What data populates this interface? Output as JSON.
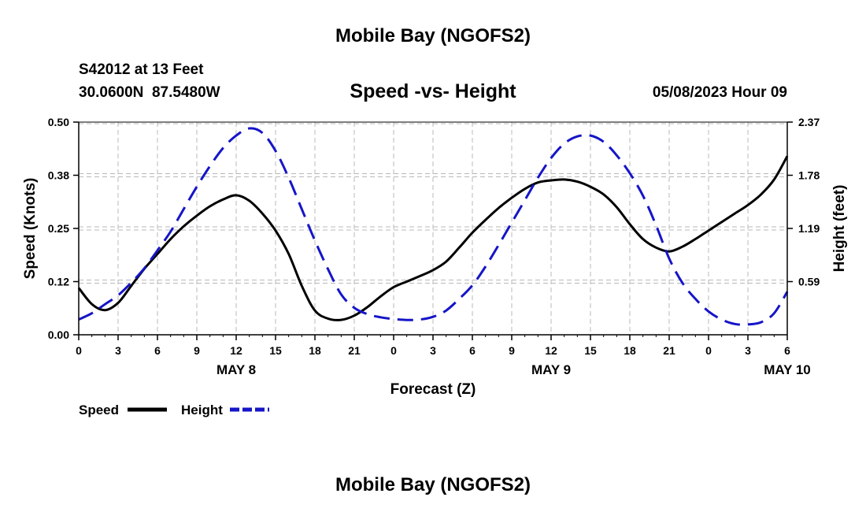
{
  "header": {
    "title": "Mobile Bay (NGOFS2)",
    "station": "S42012 at 13 Feet",
    "coords": "30.0600N  87.5480W",
    "chart_title": "Speed -vs- Height",
    "datetime": "05/08/2023 Hour 09"
  },
  "footer": {
    "title": "Mobile Bay (NGOFS2)"
  },
  "legend": {
    "speed_label": "Speed",
    "height_label": "Height"
  },
  "colors": {
    "speed": "#000000",
    "height": "#1515c8",
    "grid": "#b8b8b8"
  },
  "chart_data": {
    "type": "line",
    "title": "Speed -vs- Height",
    "xlabel": "Forecast (Z)",
    "ylabel": "Speed (Knots)",
    "y2label": "Height (feet)",
    "x_ticks": [
      "0",
      "3",
      "6",
      "9",
      "12",
      "15",
      "18",
      "21",
      "0",
      "3",
      "6",
      "9",
      "12",
      "15",
      "18",
      "21",
      "0",
      "3",
      "6"
    ],
    "x_days": [
      {
        "label": "MAY 8",
        "hour": 12
      },
      {
        "label": "MAY 9",
        "hour": 36
      },
      {
        "label": "MAY 10",
        "hour": 54
      }
    ],
    "xlim": [
      0,
      54
    ],
    "ylim": [
      0,
      0.5
    ],
    "y_ticks": [
      "0.00",
      "0.12",
      "0.25",
      "0.38",
      "0.50"
    ],
    "y_tick_values": [
      0,
      0.125,
      0.25,
      0.375,
      0.5
    ],
    "y2lim": [
      0,
      2.37
    ],
    "y2_ticks": [
      "0.59",
      "1.19",
      "1.78",
      "2.37"
    ],
    "y2_tick_values": [
      0.5925,
      1.185,
      1.7775,
      2.37
    ],
    "grid": true,
    "series": [
      {
        "name": "Speed",
        "axis": "left",
        "style": "solid",
        "x": [
          0,
          1,
          2,
          3,
          4,
          5,
          6,
          7,
          8,
          9,
          10,
          11,
          12,
          13,
          14,
          15,
          16,
          17,
          18,
          19,
          20,
          21,
          22,
          23,
          24,
          25,
          26,
          27,
          28,
          29,
          30,
          31,
          32,
          33,
          34,
          35,
          36,
          37,
          38,
          39,
          40,
          41,
          42,
          43,
          44,
          45,
          46,
          47,
          48,
          49,
          50,
          51,
          52,
          53,
          54
        ],
        "values": [
          0.11,
          0.072,
          0.058,
          0.075,
          0.115,
          0.155,
          0.19,
          0.225,
          0.255,
          0.28,
          0.302,
          0.318,
          0.328,
          0.315,
          0.285,
          0.245,
          0.19,
          0.115,
          0.057,
          0.038,
          0.035,
          0.045,
          0.065,
          0.09,
          0.112,
          0.125,
          0.138,
          0.152,
          0.172,
          0.205,
          0.24,
          0.27,
          0.298,
          0.322,
          0.343,
          0.358,
          0.363,
          0.365,
          0.36,
          0.348,
          0.33,
          0.3,
          0.26,
          0.225,
          0.205,
          0.196,
          0.207,
          0.225,
          0.245,
          0.265,
          0.285,
          0.305,
          0.33,
          0.365,
          0.42
        ]
      },
      {
        "name": "Height",
        "axis": "right",
        "style": "dashed",
        "x": [
          0,
          1,
          2,
          3,
          4,
          5,
          6,
          7,
          8,
          9,
          10,
          11,
          12,
          13,
          14,
          15,
          16,
          17,
          18,
          19,
          20,
          21,
          22,
          23,
          24,
          25,
          26,
          27,
          28,
          29,
          30,
          31,
          32,
          33,
          34,
          35,
          36,
          37,
          38,
          39,
          40,
          41,
          42,
          43,
          44,
          45,
          46,
          47,
          48,
          49,
          50,
          51,
          52,
          53,
          54
        ],
        "values": [
          0.17,
          0.24,
          0.34,
          0.44,
          0.58,
          0.74,
          0.94,
          1.15,
          1.4,
          1.65,
          1.88,
          2.08,
          2.22,
          2.3,
          2.25,
          2.05,
          1.75,
          1.4,
          1.05,
          0.73,
          0.45,
          0.3,
          0.23,
          0.195,
          0.175,
          0.165,
          0.17,
          0.2,
          0.27,
          0.4,
          0.55,
          0.76,
          1.0,
          1.25,
          1.5,
          1.75,
          1.97,
          2.13,
          2.21,
          2.22,
          2.15,
          2.0,
          1.8,
          1.55,
          1.22,
          0.85,
          0.58,
          0.4,
          0.26,
          0.17,
          0.12,
          0.115,
          0.14,
          0.24,
          0.48
        ]
      }
    ]
  }
}
